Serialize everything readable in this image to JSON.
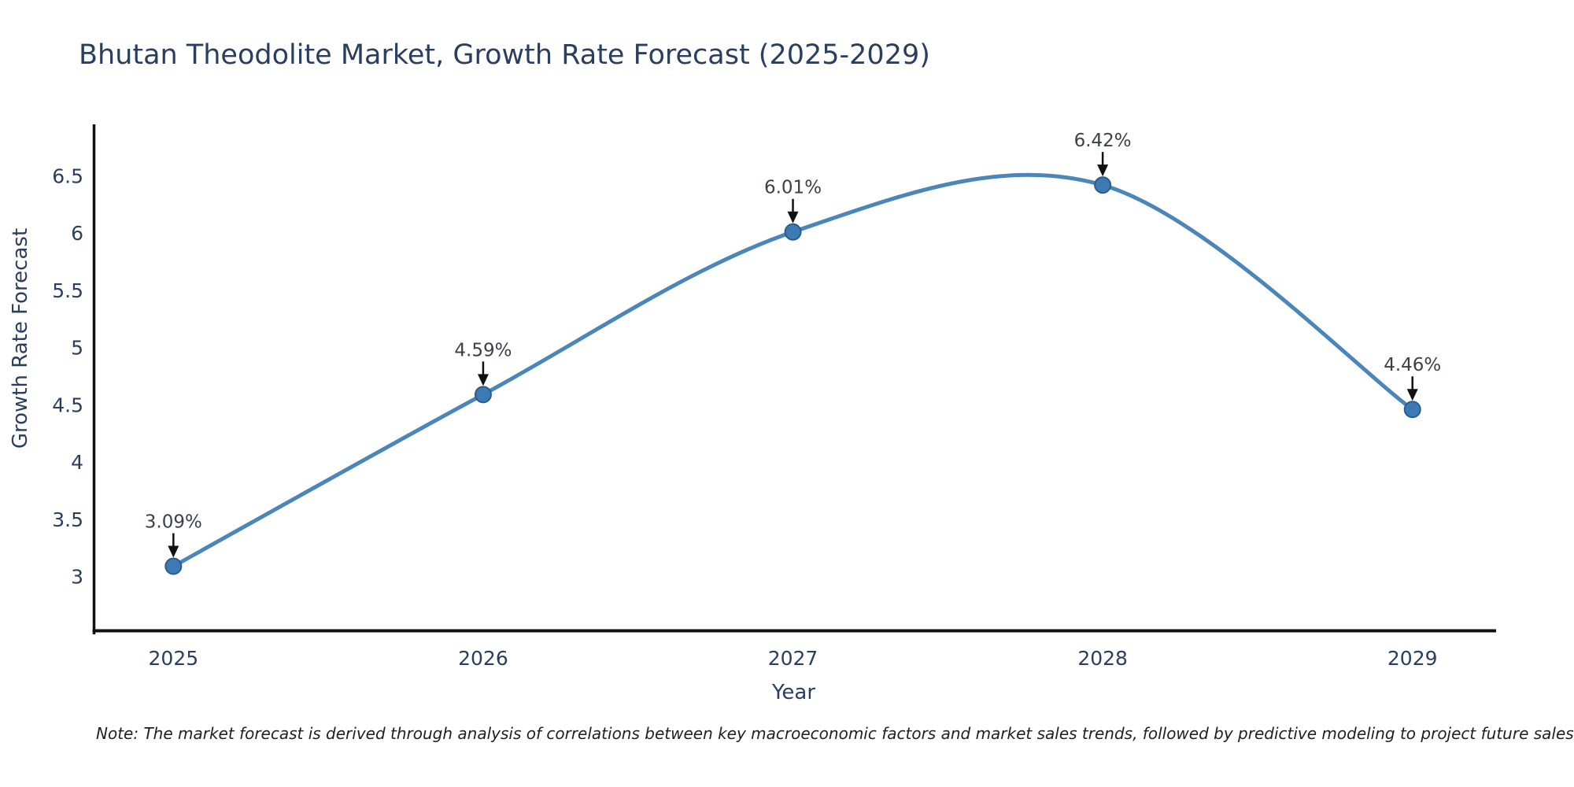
{
  "chart_data": {
    "type": "line",
    "title": "Bhutan Theodolite Market, Growth Rate Forecast (2025-2029)",
    "xlabel": "Year",
    "ylabel": "Growth Rate Forecast",
    "x": [
      2025,
      2026,
      2027,
      2028,
      2029
    ],
    "values": [
      3.09,
      4.59,
      6.01,
      6.42,
      4.46
    ],
    "point_labels": [
      "3.09%",
      "4.59%",
      "6.01%",
      "6.42%",
      "4.46%"
    ],
    "yticks": [
      3,
      3.5,
      4,
      4.5,
      5,
      5.5,
      6,
      6.5
    ],
    "ytick_labels": [
      "3",
      "3.5",
      "4",
      "4.5",
      "5",
      "5.5",
      "6",
      "6.5"
    ],
    "xtick_labels": [
      "2025",
      "2026",
      "2027",
      "2028",
      "2029"
    ],
    "ylim": [
      2.53,
      6.95
    ],
    "xlim": [
      2024.74,
      2029.27
    ],
    "grid": false,
    "legend": null,
    "line_shape": "spline",
    "note": "Note: The market forecast is derived through analysis of correlations between key macroeconomic factors and market sales trends, followed by predictive modeling to project future sales",
    "colors": {
      "line": "#4a86ba",
      "marker": "#3d7ab3",
      "marker_edge": "#2a5d8f",
      "axis": "#111111",
      "axis_text": "#2a3f5f",
      "annotation_text": "#3c4149",
      "arrow": "#111111",
      "background": "#ffffff"
    }
  }
}
